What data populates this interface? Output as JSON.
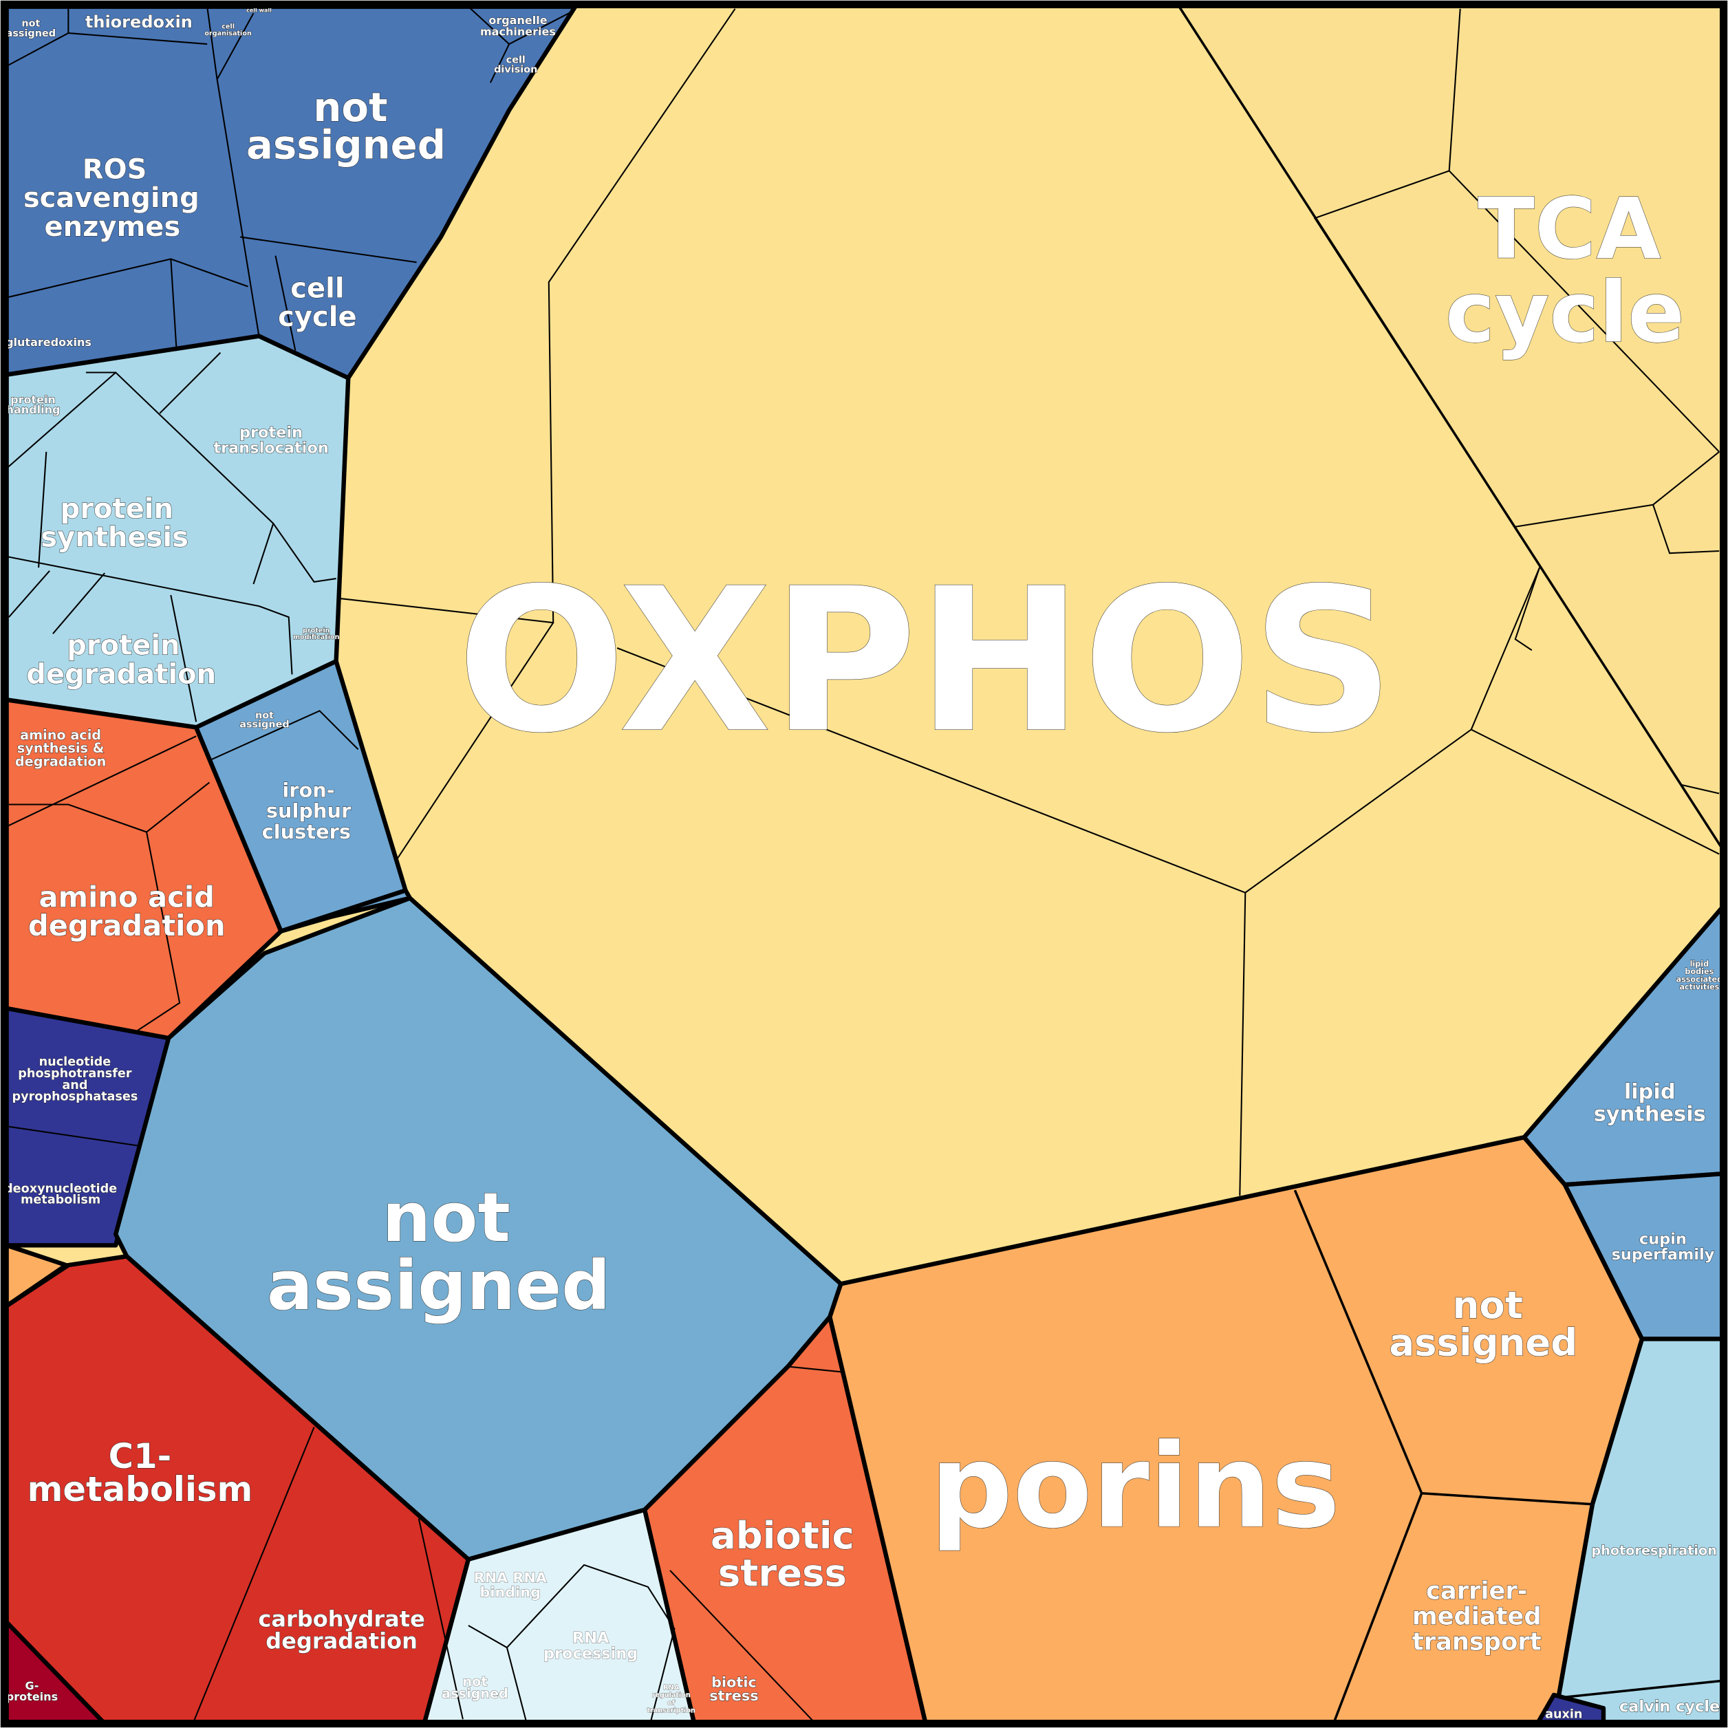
{
  "labels": [
    {
      "lines": [
        "not",
        "assigned"
      ]
    },
    {
      "lines": [
        "thioredoxin"
      ]
    },
    {
      "lines": [
        "cell",
        "organisation"
      ]
    },
    {
      "lines": [
        "cell wall"
      ]
    },
    {
      "lines": [
        "organelle",
        "machineries"
      ]
    },
    {
      "lines": [
        "cell",
        "division"
      ]
    },
    {
      "lines": [
        "not",
        "assigned"
      ]
    },
    {
      "lines": [
        "ROS",
        "scavenging",
        "enzymes"
      ]
    },
    {
      "lines": [
        "cell",
        "cycle"
      ]
    },
    {
      "lines": [
        "glutaredoxins"
      ]
    },
    {
      "lines": [
        "protein",
        "handling"
      ]
    },
    {
      "lines": [
        "protein",
        "translocation"
      ]
    },
    {
      "lines": [
        "protein",
        "synthesis"
      ]
    },
    {
      "lines": [
        "protein",
        "degradation"
      ]
    },
    {
      "lines": [
        "protein",
        "modification"
      ]
    },
    {
      "lines": [
        "not",
        "assigned"
      ]
    },
    {
      "lines": [
        "amino acid",
        "synthesis &",
        "degradation"
      ]
    },
    {
      "lines": [
        "iron-",
        "sulphur",
        "clusters"
      ]
    },
    {
      "lines": [
        "amino acid",
        "degradation"
      ]
    },
    {
      "lines": [
        "OXPHOS"
      ]
    },
    {
      "lines": [
        "TCA",
        "cycle"
      ]
    },
    {
      "lines": [
        "nucleotide",
        "phosphotransfer",
        "and",
        "pyrophosphatases"
      ]
    },
    {
      "lines": [
        "deoxynucleotide",
        "metabolism"
      ]
    },
    {
      "lines": [
        "not",
        "assigned"
      ]
    },
    {
      "lines": [
        "C1-",
        "metabolism"
      ]
    },
    {
      "lines": [
        "carbohydrate",
        "degradation"
      ]
    },
    {
      "lines": [
        "G-",
        "proteins"
      ]
    },
    {
      "lines": [
        "RNA RNA",
        "binding"
      ]
    },
    {
      "lines": [
        "RNA",
        "processing"
      ]
    },
    {
      "lines": [
        "not",
        "assigned"
      ]
    },
    {
      "lines": [
        "RNA",
        "regulation",
        "of",
        "transcription"
      ]
    },
    {
      "lines": [
        "abiotic",
        "stress"
      ]
    },
    {
      "lines": [
        "biotic",
        "stress"
      ]
    },
    {
      "lines": [
        "porins"
      ]
    },
    {
      "lines": [
        "not",
        "assigned"
      ]
    },
    {
      "lines": [
        "carrier-",
        "mediated",
        "transport"
      ]
    },
    {
      "lines": [
        "lipid",
        "bodies",
        "associated",
        "activities"
      ]
    },
    {
      "lines": [
        "lipid",
        "synthesis"
      ]
    },
    {
      "lines": [
        "cupin",
        "superfamily"
      ]
    },
    {
      "lines": [
        "photorespiration"
      ]
    },
    {
      "lines": [
        "calvin cycle"
      ]
    },
    {
      "lines": [
        "auxin"
      ]
    }
  ]
}
